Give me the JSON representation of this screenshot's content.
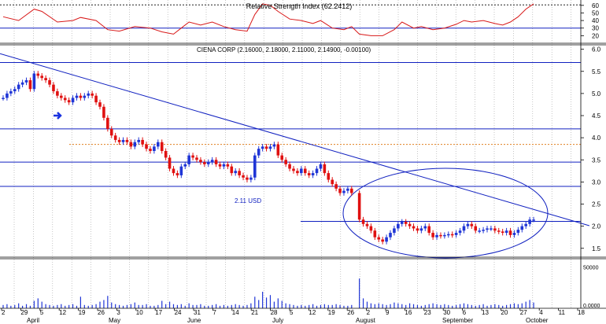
{
  "rsi_panel": {
    "title": "Relative Strength Index (62.2412)",
    "ticks": [
      "60",
      "50",
      "40",
      "30",
      "20"
    ],
    "tick_values": [
      60,
      50,
      40,
      30,
      20
    ],
    "levels": [
      70,
      30
    ]
  },
  "price_panel": {
    "title": "CIENA CORP (2.16000, 2.18000, 2.11000, 2.14900, -0.00100)",
    "ticks": [
      "6.0",
      "5.5",
      "5.0",
      "4.5",
      "4.0",
      "3.5",
      "3.0",
      "2.5",
      "2.0",
      "1.5"
    ],
    "tick_values": [
      6.0,
      5.5,
      5.0,
      4.5,
      4.0,
      3.5,
      3.0,
      2.5,
      2.0,
      1.5
    ],
    "ylim": [
      1.3,
      6.1
    ],
    "annotation": "2.11 USD",
    "annotation_value": 2.11,
    "horizontal_lines": [
      5.7,
      4.2,
      3.45,
      2.9
    ],
    "dashed_level": 3.85,
    "trendline": {
      "start": [
        0,
        5.9
      ],
      "end": [
        164,
        2.1
      ]
    }
  },
  "volume_panel": {
    "ticks": [
      "50000",
      "0.0000"
    ],
    "tick_values": [
      50000,
      0
    ]
  },
  "x_axis": {
    "days": [
      "2",
      "29",
      "5",
      "12",
      "19",
      "26",
      "3",
      "10",
      "17",
      "24",
      "31",
      "7",
      "14",
      "21",
      "28",
      "5",
      "12",
      "19",
      "26",
      "2",
      "9",
      "16",
      "23",
      "30",
      "6",
      "13",
      "20",
      "27",
      "4",
      "11",
      "18"
    ],
    "months": [
      "April",
      "May",
      "June",
      "July",
      "August",
      "September",
      "October"
    ]
  },
  "colors": {
    "up": "#1f35d6",
    "down": "#e01010",
    "rsi": "#d81818",
    "grid": "#808080",
    "hline": "#1020c0",
    "orange": "#e08020"
  },
  "chart_data": {
    "type": "candlestick",
    "title": "CIENA CORP (2.16000, 2.18000, 2.11000, 2.14900, -0.00100)",
    "x_unit": "trading day index",
    "series": [
      {
        "name": "CIENA CORP",
        "values": [
          {
            "x": 0,
            "c": 4.9,
            "v": 4000
          },
          {
            "x": 1,
            "c": 5.0,
            "v": 5000
          },
          {
            "x": 2,
            "c": 5.05,
            "v": 3000
          },
          {
            "x": 3,
            "c": 5.1,
            "v": 4000
          },
          {
            "x": 4,
            "c": 5.2,
            "v": 6000
          },
          {
            "x": 5,
            "c": 5.25,
            "v": 3000
          },
          {
            "x": 6,
            "c": 5.3,
            "v": 5000
          },
          {
            "x": 7,
            "c": 5.1,
            "v": 3000
          },
          {
            "x": 8,
            "c": 5.45,
            "v": 9000
          },
          {
            "x": 9,
            "c": 5.4,
            "v": 12000
          },
          {
            "x": 10,
            "c": 5.35,
            "v": 8000
          },
          {
            "x": 11,
            "c": 5.3,
            "v": 5000
          },
          {
            "x": 12,
            "c": 5.2,
            "v": 4000
          },
          {
            "x": 13,
            "c": 5.05,
            "v": 3000
          },
          {
            "x": 14,
            "c": 4.95,
            "v": 4000
          },
          {
            "x": 15,
            "c": 4.9,
            "v": 5000
          },
          {
            "x": 16,
            "c": 4.85,
            "v": 3000
          },
          {
            "x": 17,
            "c": 4.8,
            "v": 4000
          },
          {
            "x": 18,
            "c": 4.9,
            "v": 5000
          },
          {
            "x": 19,
            "c": 4.95,
            "v": 3000
          },
          {
            "x": 20,
            "c": 4.9,
            "v": 14000
          },
          {
            "x": 21,
            "c": 4.95,
            "v": 4000
          },
          {
            "x": 22,
            "c": 5.0,
            "v": 3000
          },
          {
            "x": 23,
            "c": 4.95,
            "v": 4000
          },
          {
            "x": 24,
            "c": 4.8,
            "v": 5000
          },
          {
            "x": 25,
            "c": 4.7,
            "v": 8000
          },
          {
            "x": 26,
            "c": 4.45,
            "v": 10000
          },
          {
            "x": 27,
            "c": 4.2,
            "v": 15000
          },
          {
            "x": 28,
            "c": 4.05,
            "v": 7000
          },
          {
            "x": 29,
            "c": 3.95,
            "v": 5000
          },
          {
            "x": 30,
            "c": 3.9,
            "v": 4000
          },
          {
            "x": 31,
            "c": 3.95,
            "v": 3000
          },
          {
            "x": 32,
            "c": 3.9,
            "v": 4000
          },
          {
            "x": 33,
            "c": 3.8,
            "v": 5000
          },
          {
            "x": 34,
            "c": 3.9,
            "v": 7000
          },
          {
            "x": 35,
            "c": 3.95,
            "v": 4000
          },
          {
            "x": 36,
            "c": 3.85,
            "v": 4000
          },
          {
            "x": 37,
            "c": 3.75,
            "v": 5000
          },
          {
            "x": 38,
            "c": 3.7,
            "v": 3000
          },
          {
            "x": 39,
            "c": 3.8,
            "v": 3000
          },
          {
            "x": 40,
            "c": 3.9,
            "v": 4000
          },
          {
            "x": 41,
            "c": 3.7,
            "v": 9000
          },
          {
            "x": 42,
            "c": 3.55,
            "v": 5000
          },
          {
            "x": 43,
            "c": 3.3,
            "v": 8000
          },
          {
            "x": 44,
            "c": 3.2,
            "v": 5000
          },
          {
            "x": 45,
            "c": 3.15,
            "v": 4000
          },
          {
            "x": 46,
            "c": 3.35,
            "v": 5000
          },
          {
            "x": 47,
            "c": 3.4,
            "v": 3000
          },
          {
            "x": 48,
            "c": 3.6,
            "v": 6000
          },
          {
            "x": 49,
            "c": 3.55,
            "v": 4000
          },
          {
            "x": 50,
            "c": 3.5,
            "v": 4000
          },
          {
            "x": 51,
            "c": 3.45,
            "v": 5000
          },
          {
            "x": 52,
            "c": 3.4,
            "v": 3000
          },
          {
            "x": 53,
            "c": 3.45,
            "v": 3000
          },
          {
            "x": 54,
            "c": 3.5,
            "v": 4000
          },
          {
            "x": 55,
            "c": 3.4,
            "v": 5000
          },
          {
            "x": 56,
            "c": 3.35,
            "v": 3000
          },
          {
            "x": 57,
            "c": 3.4,
            "v": 4000
          },
          {
            "x": 58,
            "c": 3.35,
            "v": 3000
          },
          {
            "x": 59,
            "c": 3.2,
            "v": 4000
          },
          {
            "x": 60,
            "c": 3.25,
            "v": 5000
          },
          {
            "x": 61,
            "c": 3.15,
            "v": 4000
          },
          {
            "x": 62,
            "c": 3.1,
            "v": 3000
          },
          {
            "x": 63,
            "c": 3.05,
            "v": 4000
          },
          {
            "x": 64,
            "c": 3.1,
            "v": 6000
          },
          {
            "x": 65,
            "c": 3.6,
            "v": 14000
          },
          {
            "x": 66,
            "c": 3.75,
            "v": 10000
          },
          {
            "x": 67,
            "c": 3.8,
            "v": 20000
          },
          {
            "x": 68,
            "c": 3.75,
            "v": 13000
          },
          {
            "x": 69,
            "c": 3.8,
            "v": 16000
          },
          {
            "x": 70,
            "c": 3.85,
            "v": 8000
          },
          {
            "x": 71,
            "c": 3.6,
            "v": 12000
          },
          {
            "x": 72,
            "c": 3.5,
            "v": 9000
          },
          {
            "x": 73,
            "c": 3.4,
            "v": 6000
          },
          {
            "x": 74,
            "c": 3.3,
            "v": 5000
          },
          {
            "x": 75,
            "c": 3.25,
            "v": 4000
          },
          {
            "x": 76,
            "c": 3.2,
            "v": 3000
          },
          {
            "x": 77,
            "c": 3.3,
            "v": 4000
          },
          {
            "x": 78,
            "c": 3.2,
            "v": 3000
          },
          {
            "x": 79,
            "c": 3.15,
            "v": 4000
          },
          {
            "x": 80,
            "c": 3.2,
            "v": 5000
          },
          {
            "x": 81,
            "c": 3.3,
            "v": 3000
          },
          {
            "x": 82,
            "c": 3.4,
            "v": 4000
          },
          {
            "x": 83,
            "c": 3.2,
            "v": 5000
          },
          {
            "x": 84,
            "c": 3.05,
            "v": 4000
          },
          {
            "x": 85,
            "c": 2.95,
            "v": 4000
          },
          {
            "x": 86,
            "c": 2.85,
            "v": 5000
          },
          {
            "x": 87,
            "c": 2.75,
            "v": 4000
          },
          {
            "x": 88,
            "c": 2.8,
            "v": 3000
          },
          {
            "x": 89,
            "c": 2.85,
            "v": 3000
          },
          {
            "x": 90,
            "c": 2.75,
            "v": 4000
          },
          {
            "x": 92,
            "c": 2.15,
            "v": 36000
          },
          {
            "x": 93,
            "c": 2.05,
            "v": 12000
          },
          {
            "x": 94,
            "c": 2.0,
            "v": 8000
          },
          {
            "x": 95,
            "c": 1.9,
            "v": 6000
          },
          {
            "x": 96,
            "c": 1.75,
            "v": 5000
          },
          {
            "x": 97,
            "c": 1.7,
            "v": 6000
          },
          {
            "x": 98,
            "c": 1.65,
            "v": 5000
          },
          {
            "x": 99,
            "c": 1.75,
            "v": 4000
          },
          {
            "x": 100,
            "c": 1.85,
            "v": 5000
          },
          {
            "x": 101,
            "c": 1.95,
            "v": 7000
          },
          {
            "x": 102,
            "c": 2.05,
            "v": 6000
          },
          {
            "x": 103,
            "c": 2.1,
            "v": 5000
          },
          {
            "x": 104,
            "c": 2.05,
            "v": 4000
          },
          {
            "x": 105,
            "c": 2.0,
            "v": 6000
          },
          {
            "x": 106,
            "c": 1.95,
            "v": 5000
          },
          {
            "x": 107,
            "c": 1.9,
            "v": 4000
          },
          {
            "x": 108,
            "c": 1.95,
            "v": 3000
          },
          {
            "x": 109,
            "c": 2.0,
            "v": 4000
          },
          {
            "x": 110,
            "c": 1.85,
            "v": 5000
          },
          {
            "x": 111,
            "c": 1.75,
            "v": 6000
          },
          {
            "x": 112,
            "c": 1.8,
            "v": 5000
          },
          {
            "x": 113,
            "c": 1.78,
            "v": 4000
          },
          {
            "x": 114,
            "c": 1.8,
            "v": 5000
          },
          {
            "x": 115,
            "c": 1.82,
            "v": 4000
          },
          {
            "x": 116,
            "c": 1.8,
            "v": 3000
          },
          {
            "x": 117,
            "c": 1.85,
            "v": 4000
          },
          {
            "x": 118,
            "c": 1.9,
            "v": 5000
          },
          {
            "x": 119,
            "c": 2.0,
            "v": 6000
          },
          {
            "x": 120,
            "c": 2.05,
            "v": 5000
          },
          {
            "x": 121,
            "c": 2.0,
            "v": 4000
          },
          {
            "x": 122,
            "c": 1.9,
            "v": 3000
          },
          {
            "x": 123,
            "c": 1.9,
            "v": 4000
          },
          {
            "x": 124,
            "c": 1.92,
            "v": 5000
          },
          {
            "x": 125,
            "c": 1.95,
            "v": 3000
          },
          {
            "x": 126,
            "c": 1.95,
            "v": 4000
          },
          {
            "x": 127,
            "c": 1.9,
            "v": 5000
          },
          {
            "x": 128,
            "c": 1.88,
            "v": 4000
          },
          {
            "x": 129,
            "c": 1.85,
            "v": 3000
          },
          {
            "x": 130,
            "c": 1.9,
            "v": 4000
          },
          {
            "x": 131,
            "c": 1.8,
            "v": 5000
          },
          {
            "x": 132,
            "c": 1.85,
            "v": 6000
          },
          {
            "x": 133,
            "c": 1.92,
            "v": 5000
          },
          {
            "x": 134,
            "c": 2.0,
            "v": 6000
          },
          {
            "x": 135,
            "c": 2.05,
            "v": 8000
          },
          {
            "x": 136,
            "c": 2.15,
            "v": 10000
          },
          {
            "x": 137,
            "c": 2.15,
            "v": 7000
          }
        ]
      },
      {
        "name": "Relative Strength Index",
        "values": [
          {
            "x": 0,
            "v": 45
          },
          {
            "x": 4,
            "v": 40
          },
          {
            "x": 8,
            "v": 55
          },
          {
            "x": 10,
            "v": 52
          },
          {
            "x": 14,
            "v": 38
          },
          {
            "x": 18,
            "v": 40
          },
          {
            "x": 20,
            "v": 44
          },
          {
            "x": 24,
            "v": 40
          },
          {
            "x": 27,
            "v": 28
          },
          {
            "x": 30,
            "v": 26
          },
          {
            "x": 34,
            "v": 32
          },
          {
            "x": 38,
            "v": 30
          },
          {
            "x": 41,
            "v": 25
          },
          {
            "x": 44,
            "v": 22
          },
          {
            "x": 46,
            "v": 30
          },
          {
            "x": 48,
            "v": 38
          },
          {
            "x": 51,
            "v": 34
          },
          {
            "x": 54,
            "v": 38
          },
          {
            "x": 57,
            "v": 32
          },
          {
            "x": 60,
            "v": 28
          },
          {
            "x": 63,
            "v": 26
          },
          {
            "x": 65,
            "v": 48
          },
          {
            "x": 67,
            "v": 62
          },
          {
            "x": 69,
            "v": 60
          },
          {
            "x": 71,
            "v": 52
          },
          {
            "x": 74,
            "v": 42
          },
          {
            "x": 77,
            "v": 40
          },
          {
            "x": 80,
            "v": 36
          },
          {
            "x": 82,
            "v": 40
          },
          {
            "x": 85,
            "v": 30
          },
          {
            "x": 88,
            "v": 28
          },
          {
            "x": 90,
            "v": 32
          },
          {
            "x": 92,
            "v": 22
          },
          {
            "x": 95,
            "v": 20
          },
          {
            "x": 98,
            "v": 20
          },
          {
            "x": 101,
            "v": 28
          },
          {
            "x": 103,
            "v": 38
          },
          {
            "x": 106,
            "v": 30
          },
          {
            "x": 108,
            "v": 32
          },
          {
            "x": 111,
            "v": 28
          },
          {
            "x": 114,
            "v": 30
          },
          {
            "x": 117,
            "v": 35
          },
          {
            "x": 119,
            "v": 40
          },
          {
            "x": 121,
            "v": 38
          },
          {
            "x": 124,
            "v": 40
          },
          {
            "x": 127,
            "v": 36
          },
          {
            "x": 129,
            "v": 34
          },
          {
            "x": 131,
            "v": 38
          },
          {
            "x": 133,
            "v": 45
          },
          {
            "x": 135,
            "v": 55
          },
          {
            "x": 137,
            "v": 62
          }
        ]
      }
    ],
    "ylim": [
      1.3,
      6.1
    ],
    "grid": true,
    "annotations": [
      "2.11 USD"
    ]
  }
}
